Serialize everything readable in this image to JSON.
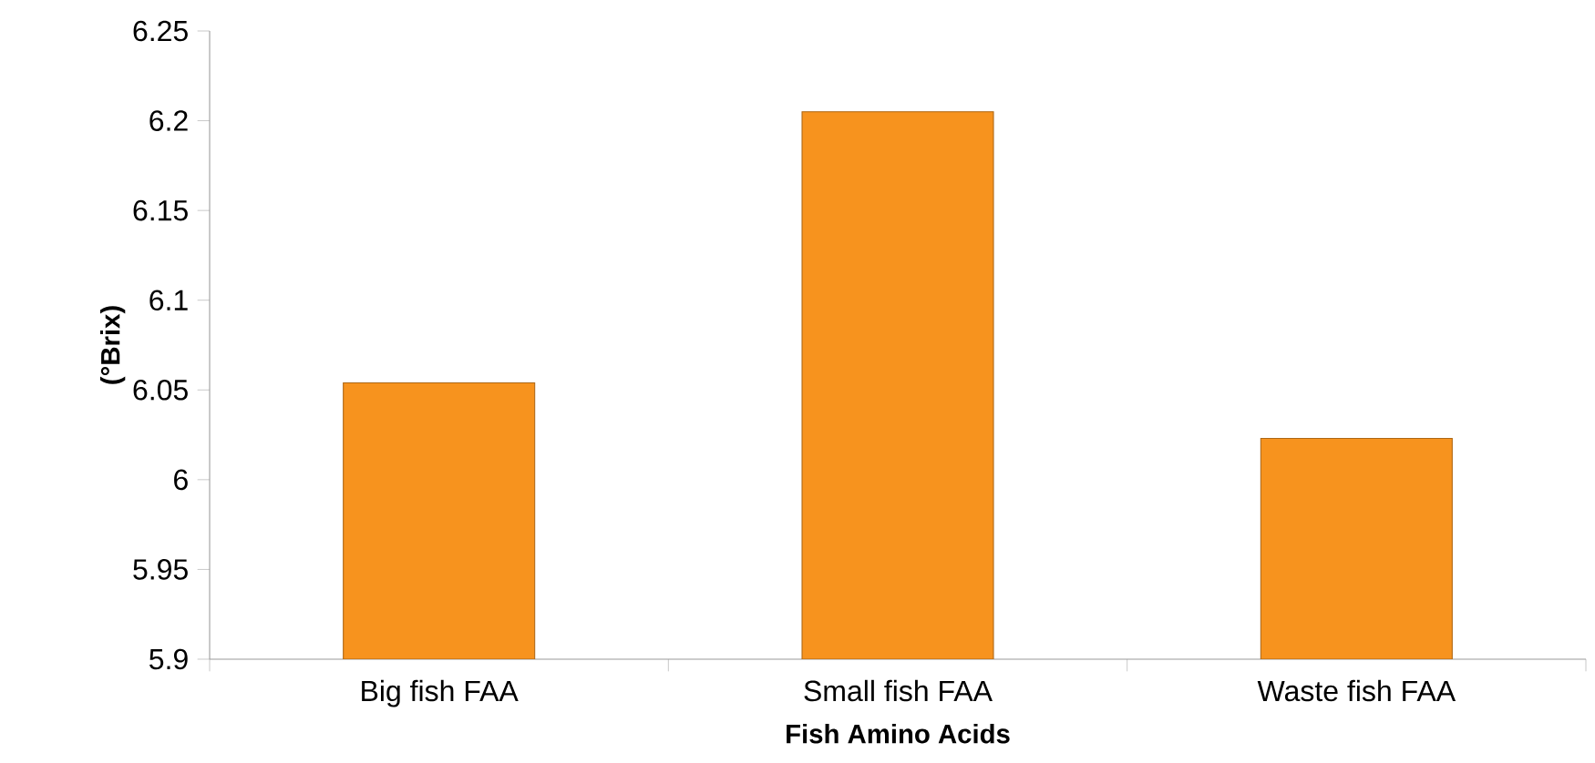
{
  "chart_data": {
    "type": "bar",
    "xlabel": "Fish Amino Acids",
    "ylabel": "(°Brix)",
    "categories": [
      "Big fish FAA",
      "Small fish FAA",
      "Waste fish FAA"
    ],
    "values": [
      6.054,
      6.205,
      6.023
    ],
    "color": "#f7931e",
    "ylim": [
      5.9,
      6.25
    ],
    "yticks": [
      5.9,
      5.95,
      6,
      6.05,
      6.1,
      6.15,
      6.2,
      6.25
    ],
    "grid": false
  }
}
